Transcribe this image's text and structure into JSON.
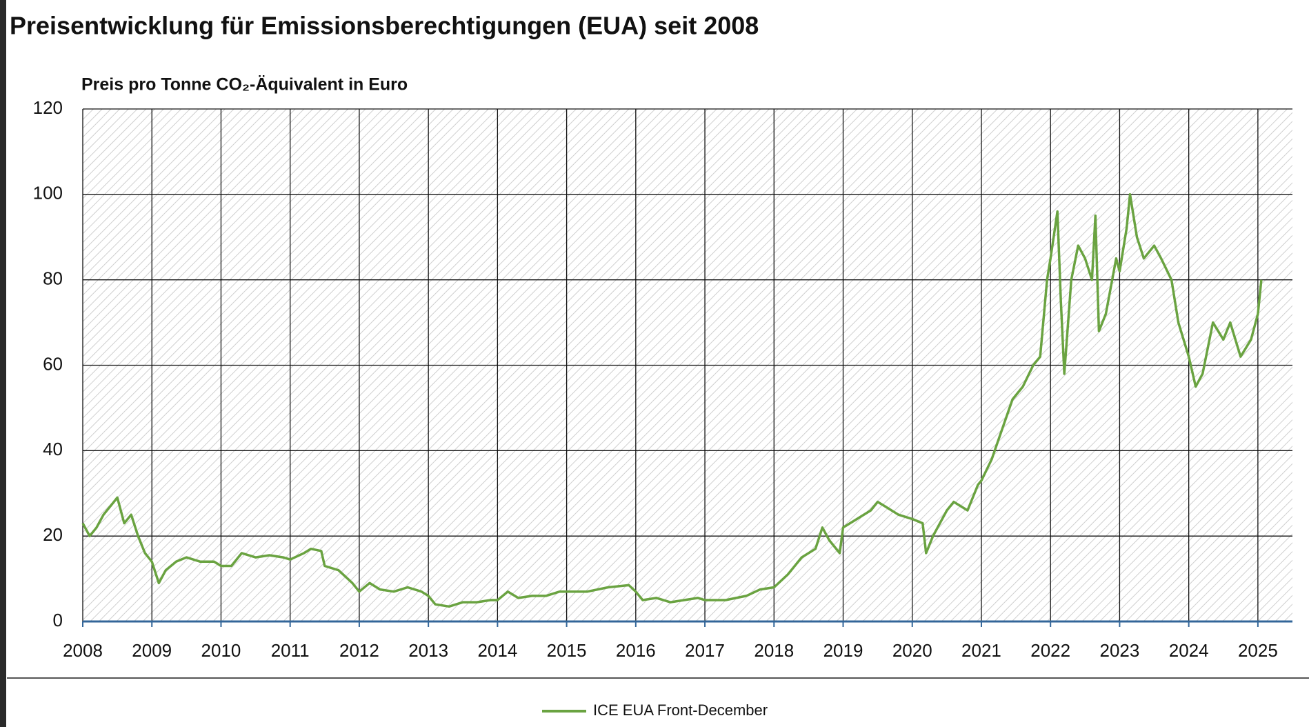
{
  "chart_data": {
    "type": "line",
    "title": "Preisentwicklung für Emissionsberechtigungen (EUA) seit 2008",
    "y_label": "Preis pro Tonne CO₂-Äquivalent in Euro",
    "x": [
      2008.0,
      2008.1,
      2008.2,
      2008.3,
      2008.45,
      2008.5,
      2008.6,
      2008.7,
      2008.8,
      2008.9,
      2009.0,
      2009.1,
      2009.2,
      2009.35,
      2009.5,
      2009.7,
      2009.9,
      2010.0,
      2010.15,
      2010.3,
      2010.5,
      2010.7,
      2010.9,
      2011.0,
      2011.2,
      2011.3,
      2011.45,
      2011.5,
      2011.7,
      2011.9,
      2012.0,
      2012.15,
      2012.3,
      2012.5,
      2012.7,
      2012.9,
      2013.0,
      2013.1,
      2013.3,
      2013.5,
      2013.7,
      2013.9,
      2014.0,
      2014.15,
      2014.3,
      2014.5,
      2014.7,
      2014.9,
      2015.0,
      2015.3,
      2015.6,
      2015.9,
      2016.0,
      2016.1,
      2016.3,
      2016.5,
      2016.7,
      2016.9,
      2017.0,
      2017.3,
      2017.6,
      2017.8,
      2018.0,
      2018.2,
      2018.4,
      2018.6,
      2018.7,
      2018.8,
      2018.95,
      2019.0,
      2019.2,
      2019.4,
      2019.5,
      2019.6,
      2019.8,
      2020.0,
      2020.15,
      2020.2,
      2020.3,
      2020.5,
      2020.6,
      2020.8,
      2020.95,
      2021.0,
      2021.15,
      2021.3,
      2021.45,
      2021.6,
      2021.75,
      2021.85,
      2021.95,
      2022.0,
      2022.1,
      2022.15,
      2022.2,
      2022.3,
      2022.4,
      2022.5,
      2022.6,
      2022.65,
      2022.7,
      2022.8,
      2022.95,
      2023.0,
      2023.1,
      2023.15,
      2023.25,
      2023.35,
      2023.5,
      2023.6,
      2023.75,
      2023.85,
      2024.0,
      2024.1,
      2024.2,
      2024.35,
      2024.5,
      2024.6,
      2024.75,
      2024.9,
      2025.0,
      2025.05
    ],
    "series": [
      {
        "name": "ICE EUA Front-December",
        "color": "#6aa341",
        "values": [
          23,
          20,
          22,
          25,
          28,
          29,
          23,
          25,
          20,
          16,
          14,
          9,
          12,
          14,
          15,
          14,
          14,
          13,
          13,
          16,
          15,
          15.5,
          15,
          14.5,
          16,
          17,
          16.5,
          13,
          12,
          9,
          7,
          9,
          7.5,
          7,
          8,
          7,
          6,
          4,
          3.5,
          4.5,
          4.5,
          5,
          5,
          7,
          5.5,
          6,
          6,
          7,
          7,
          7,
          8,
          8.5,
          7,
          5,
          5.5,
          4.5,
          5,
          5.5,
          5,
          5,
          6,
          7.5,
          8,
          11,
          15,
          17,
          22,
          19,
          16,
          22,
          24,
          26,
          28,
          27,
          25,
          24,
          23,
          16,
          20,
          26,
          28,
          26,
          32,
          33,
          38,
          45,
          52,
          55,
          60,
          62,
          80,
          85,
          96,
          75,
          58,
          80,
          88,
          85,
          80,
          95,
          68,
          72,
          85,
          82,
          92,
          100,
          90,
          85,
          88,
          85,
          80,
          70,
          62,
          55,
          58,
          70,
          66,
          70,
          62,
          66,
          72,
          80
        ]
      }
    ],
    "xlim": [
      2008,
      2025.5
    ],
    "xticks": [
      2008,
      2009,
      2010,
      2011,
      2012,
      2013,
      2014,
      2015,
      2016,
      2017,
      2018,
      2019,
      2020,
      2021,
      2022,
      2023,
      2024,
      2025
    ],
    "ylim": [
      0,
      120
    ],
    "yticks": [
      0,
      20,
      40,
      60,
      80,
      100,
      120
    ],
    "grid": true,
    "legend": "bottom"
  }
}
